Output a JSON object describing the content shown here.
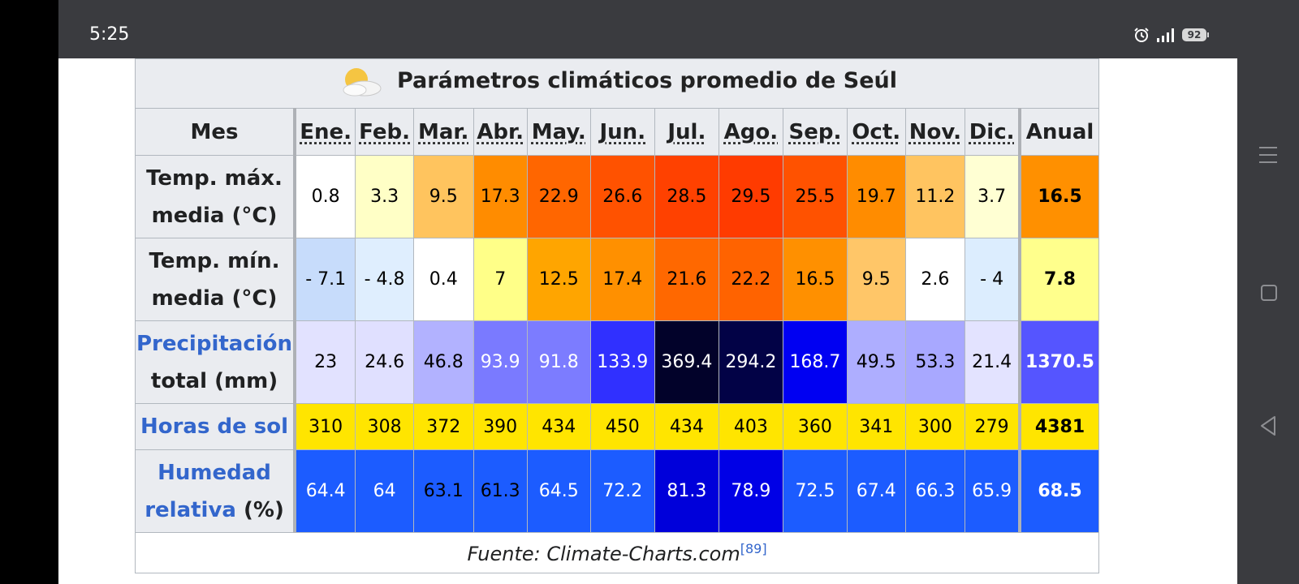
{
  "status_bar": {
    "time": "5:25",
    "battery": "92",
    "alarm_icon": "alarm-icon",
    "signal_icon": "signal-icon"
  },
  "table": {
    "title": "Parámetros climáticos promedio de Seúl",
    "weather_icon": "partly-cloudy-icon",
    "header_label": "Mes",
    "months": [
      "Ene.",
      "Feb.",
      "Mar.",
      "Abr.",
      "May.",
      "Jun.",
      "Jul.",
      "Ago.",
      "Sep.",
      "Oct.",
      "Nov.",
      "Dic."
    ],
    "annual_label": "Anual",
    "rows": [
      {
        "label_line1": "Temp. máx.",
        "label_line2": "media (°C)",
        "values": [
          "0.8",
          "3.3",
          "9.5",
          "17.3",
          "22.9",
          "26.6",
          "28.5",
          "29.5",
          "25.5",
          "19.7",
          "11.2",
          "3.7"
        ],
        "annual": "16.5",
        "colors": [
          "#ffffff",
          "#ffffc6",
          "#ffc45e",
          "#ff8c00",
          "#ff6600",
          "#ff5200",
          "#ff4100",
          "#ff3b00",
          "#ff5200",
          "#ff8c00",
          "#ffc460",
          "#ffffd3"
        ],
        "annual_color": "#ff9000"
      },
      {
        "label_line1": "Temp. mín.",
        "label_line2": "media (°C)",
        "values": [
          "- 7.1",
          "- 4.8",
          "0.4",
          "7",
          "12.5",
          "17.4",
          "21.6",
          "22.2",
          "16.5",
          "9.5",
          "2.6",
          "- 4"
        ],
        "annual": "7.8",
        "colors": [
          "#c7dcfb",
          "#dfeefe",
          "#ffffff",
          "#ffff88",
          "#ffa500",
          "#ff9000",
          "#ff6800",
          "#ff6300",
          "#ff9000",
          "#ffc668",
          "#ffffff",
          "#dcedfe"
        ],
        "annual_color": "#ffff8c"
      },
      {
        "label_line1": "Precipitación",
        "label_line2": "total (mm)",
        "link_line1": true,
        "values": [
          "23",
          "24.6",
          "46.8",
          "93.9",
          "91.8",
          "133.9",
          "369.4",
          "294.2",
          "168.7",
          "49.5",
          "53.3",
          "21.4"
        ],
        "annual": "1370.5",
        "colors": [
          "#e2e2ff",
          "#e0e0ff",
          "#b2b2ff",
          "#7a7aff",
          "#7c7cff",
          "#3030ff",
          "#02022a",
          "#020246",
          "#0000f2",
          "#aeaeff",
          "#a8a8ff",
          "#e3e3ff"
        ],
        "annual_color": "#5555ff",
        "light_text": [
          false,
          false,
          false,
          true,
          true,
          true,
          true,
          true,
          true,
          false,
          false,
          false
        ],
        "annual_light": true
      },
      {
        "label_line1": "Horas de sol",
        "link_line1": true,
        "short": true,
        "values": [
          "310",
          "308",
          "372",
          "390",
          "434",
          "450",
          "434",
          "403",
          "360",
          "341",
          "300",
          "279"
        ],
        "annual": "4381",
        "colors": [
          "#ffe500",
          "#ffe500",
          "#ffe500",
          "#ffe500",
          "#ffe500",
          "#ffe500",
          "#ffe500",
          "#ffe500",
          "#ffe500",
          "#ffe500",
          "#ffe500",
          "#ffe500"
        ],
        "annual_color": "#ffe500"
      },
      {
        "label_line1": "Humedad",
        "label_line2_link": "relativa",
        "label_line2": " (%)",
        "link_line1": true,
        "values": [
          "64.4",
          "64",
          "63.1",
          "61.3",
          "64.5",
          "72.2",
          "81.3",
          "78.9",
          "72.5",
          "67.4",
          "66.3",
          "65.9"
        ],
        "annual": "68.5",
        "colors": [
          "#1c5cff",
          "#1c5cff",
          "#1c5cff",
          "#1c5cff",
          "#1c5cff",
          "#1c5cff",
          "#0000da",
          "#0000e6",
          "#1c5cff",
          "#1c5cff",
          "#1c5cff",
          "#1c5cff"
        ],
        "annual_color": "#1c5cff",
        "light_text": [
          true,
          true,
          false,
          false,
          true,
          true,
          true,
          true,
          true,
          true,
          true,
          true
        ],
        "annual_light": true
      }
    ],
    "source_text": "Fuente: Climate-Charts.com",
    "source_ref": "[89]"
  },
  "nav_bar": {
    "menu_icon": "menu-icon",
    "home_icon": "home-square-icon",
    "back_icon": "back-triangle-icon"
  }
}
